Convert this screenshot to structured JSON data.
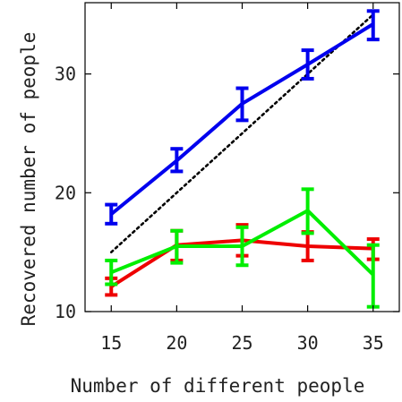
{
  "chart_data": {
    "type": "line",
    "title": "",
    "xlabel": "Number of different people",
    "ylabel": "Recovered number of people",
    "x": [
      15,
      20,
      25,
      30,
      35
    ],
    "xlim": [
      13,
      37
    ],
    "ylim": [
      10,
      36
    ],
    "xticks": [
      "15",
      "20",
      "25",
      "30",
      "35"
    ],
    "yticks": [
      "10",
      "20",
      "30"
    ],
    "grid": false,
    "legend": "none",
    "reference_line": {
      "style": "dotted",
      "color": "#000000",
      "points": [
        [
          15,
          15
        ],
        [
          35,
          35
        ]
      ]
    },
    "series": [
      {
        "color": "#0000ee",
        "values": [
          18.2,
          22.7,
          27.5,
          30.8,
          34.2
        ],
        "err_low": [
          17.4,
          21.8,
          26.1,
          29.6,
          32.9
        ],
        "err_high": [
          19.0,
          23.7,
          28.8,
          32.0,
          35.3
        ]
      },
      {
        "color": "#ee0000",
        "values": [
          12.1,
          15.6,
          16.0,
          15.5,
          15.3
        ],
        "err_low": [
          11.4,
          14.3,
          14.7,
          14.3,
          14.4
        ],
        "err_high": [
          12.8,
          16.8,
          17.3,
          16.7,
          16.1
        ]
      },
      {
        "color": "#00ee00",
        "values": [
          13.3,
          15.5,
          15.5,
          18.5,
          13.1
        ],
        "err_low": [
          12.3,
          14.1,
          13.9,
          16.6,
          10.4
        ],
        "err_high": [
          14.3,
          16.8,
          17.1,
          20.3,
          15.6
        ]
      }
    ]
  }
}
